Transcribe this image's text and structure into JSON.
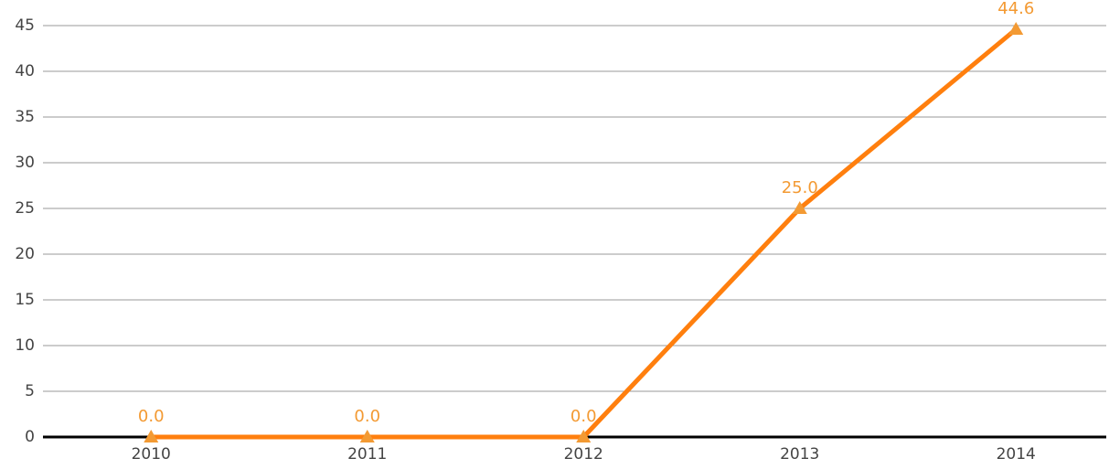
{
  "chart_data": {
    "type": "line",
    "categories": [
      "2010",
      "2011",
      "2012",
      "2013",
      "2014"
    ],
    "values": [
      0,
      0,
      0,
      25,
      44.6
    ],
    "value_labels": [
      "0.0",
      "0.0",
      "0.0",
      "25.0",
      "44.6"
    ],
    "color": "#ff7f0e",
    "marker": "triangle",
    "ylim": [
      0,
      45
    ],
    "yticks": [
      0,
      5,
      10,
      15,
      20,
      25,
      30,
      35,
      40,
      45
    ],
    "grid": true
  }
}
